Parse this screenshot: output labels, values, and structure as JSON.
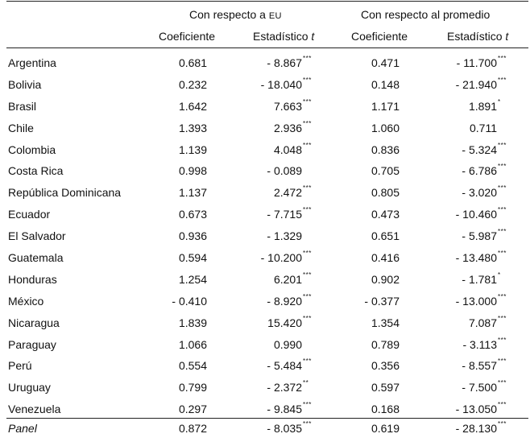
{
  "header": {
    "group1_prefix": "Con respecto a",
    "group1_suffix": "EU",
    "group2": "Con respecto al promedio",
    "col_coef": "Coeficiente",
    "col_stat_prefix": "Estadístico",
    "col_stat_t": "t"
  },
  "rows": [
    {
      "country": "Argentina",
      "coef1": "0.681",
      "stat1": "- 8.867",
      "sig1": "***",
      "coef2": "0.471",
      "stat2": "- 11.700",
      "sig2": "***"
    },
    {
      "country": "Bolivia",
      "coef1": "0.232",
      "stat1": "- 18.040",
      "sig1": "***",
      "coef2": "0.148",
      "stat2": "- 21.940",
      "sig2": "***"
    },
    {
      "country": "Brasil",
      "coef1": "1.642",
      "stat1": "7.663",
      "sig1": "***",
      "coef2": "1.171",
      "stat2": "1.891",
      "sig2": "*"
    },
    {
      "country": "Chile",
      "coef1": "1.393",
      "stat1": "2.936",
      "sig1": "***",
      "coef2": "1.060",
      "stat2": "0.711",
      "sig2": ""
    },
    {
      "country": "Colombia",
      "coef1": "1.139",
      "stat1": "4.048",
      "sig1": "***",
      "coef2": "0.836",
      "stat2": "- 5.324",
      "sig2": "***"
    },
    {
      "country": "Costa Rica",
      "coef1": "0.998",
      "stat1": "- 0.089",
      "sig1": "",
      "coef2": "0.705",
      "stat2": "- 6.786",
      "sig2": "***"
    },
    {
      "country": "República Dominicana",
      "coef1": "1.137",
      "stat1": "2.472",
      "sig1": "***",
      "coef2": "0.805",
      "stat2": "- 3.020",
      "sig2": "***"
    },
    {
      "country": "Ecuador",
      "coef1": "0.673",
      "stat1": "- 7.715",
      "sig1": "***",
      "coef2": "0.473",
      "stat2": "- 10.460",
      "sig2": "***"
    },
    {
      "country": "El Salvador",
      "coef1": "0.936",
      "stat1": "- 1.329",
      "sig1": "",
      "coef2": "0.651",
      "stat2": "- 5.987",
      "sig2": "***"
    },
    {
      "country": "Guatemala",
      "coef1": "0.594",
      "stat1": "- 10.200",
      "sig1": "***",
      "coef2": "0.416",
      "stat2": "- 13.480",
      "sig2": "***"
    },
    {
      "country": "Honduras",
      "coef1": "1.254",
      "stat1": "6.201",
      "sig1": "***",
      "coef2": "0.902",
      "stat2": "- 1.781",
      "sig2": "*"
    },
    {
      "country": "México",
      "coef1": "- 0.410",
      "stat1": "- 8.920",
      "sig1": "***",
      "coef2": "- 0.377",
      "stat2": "- 13.000",
      "sig2": "***"
    },
    {
      "country": "Nicaragua",
      "coef1": "1.839",
      "stat1": "15.420",
      "sig1": "***",
      "coef2": "1.354",
      "stat2": "7.087",
      "sig2": "***"
    },
    {
      "country": "Paraguay",
      "coef1": "1.066",
      "stat1": "0.990",
      "sig1": "",
      "coef2": "0.789",
      "stat2": "- 3.113",
      "sig2": "***"
    },
    {
      "country": "Perú",
      "coef1": "0.554",
      "stat1": "- 5.484",
      "sig1": "***",
      "coef2": "0.356",
      "stat2": "- 8.557",
      "sig2": "***"
    },
    {
      "country": "Uruguay",
      "coef1": "0.799",
      "stat1": "- 2.372",
      "sig1": "**",
      "coef2": "0.597",
      "stat2": "- 7.500",
      "sig2": "***"
    },
    {
      "country": "Venezuela",
      "coef1": "0.297",
      "stat1": "- 9.845",
      "sig1": "***",
      "coef2": "0.168",
      "stat2": "- 13.050",
      "sig2": "***"
    }
  ],
  "panel": {
    "label": "Panel",
    "coef1": "0.872",
    "stat1": "- 8.035",
    "sig1": "***",
    "coef2": "0.619",
    "stat2": "- 28.130",
    "sig2": "***"
  }
}
